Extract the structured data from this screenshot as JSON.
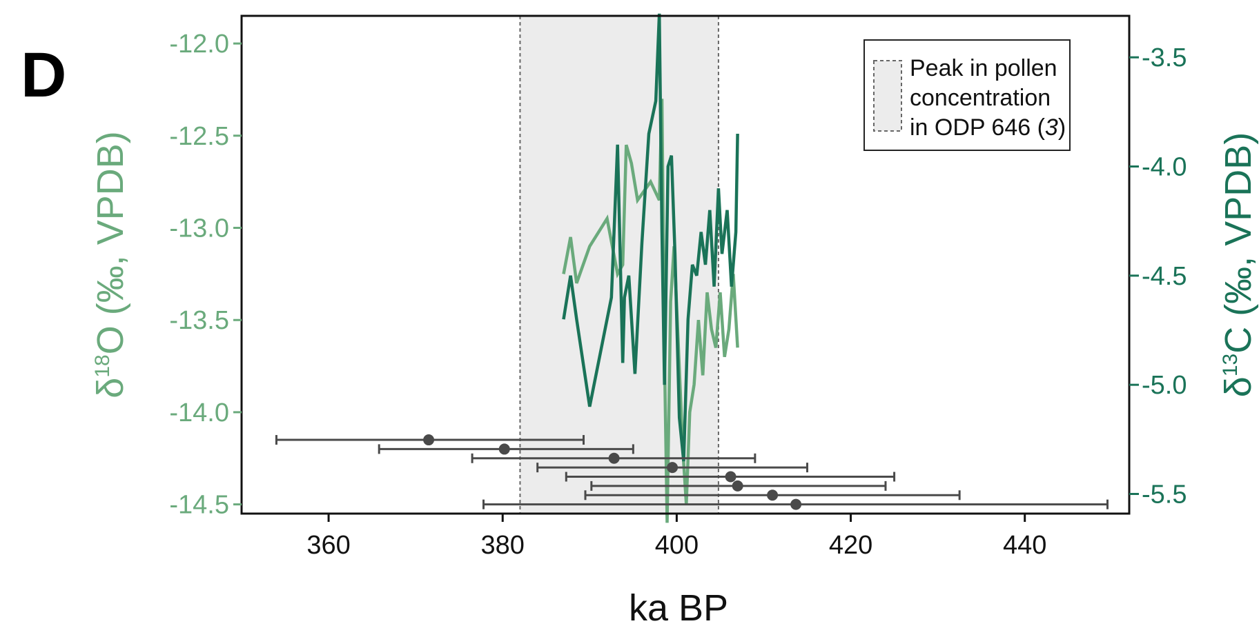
{
  "panel_label": "D",
  "colors": {
    "d18o": "#6aaa7c",
    "d13c": "#1a7358",
    "markers": "#4a4a4a",
    "shade": "#ececec",
    "axis": "#111111"
  },
  "chart_data": {
    "type": "line",
    "title": "",
    "xlabel": "ka BP",
    "xlim": [
      350,
      452
    ],
    "x_ticks": [
      "360",
      "380",
      "400",
      "420",
      "440"
    ],
    "y_left": {
      "label_main": "δ",
      "label_sup": "18",
      "label_rest": "O (‰, VPDB)",
      "ylim": [
        -14.55,
        -11.85
      ],
      "ticks": [
        "-12.0",
        "-12.5",
        "-13.0",
        "-13.5",
        "-14.0",
        "-14.5"
      ]
    },
    "y_right": {
      "label_main": "δ",
      "label_sup": "13",
      "label_rest": "C (‰, VPDB)",
      "ylim": [
        -5.59,
        -3.31
      ],
      "ticks": [
        "-3.5",
        "-4.0",
        "-4.5",
        "-5.0",
        "-5.5"
      ]
    },
    "shaded_region": {
      "x": [
        382,
        404.8
      ],
      "legend_line1": "Peak in pollen",
      "legend_line2": "concentration",
      "legend_line3a": "in ODP 646 (",
      "legend_line3b": "3",
      "legend_line3c": ")"
    },
    "series": [
      {
        "key": "d18o",
        "axis": "left",
        "x": [
          387.0,
          387.8,
          388.5,
          390.0,
          392.0,
          393.2,
          393.8,
          394.2,
          394.8,
          395.5,
          397.0,
          398.0,
          398.3,
          398.6,
          398.9,
          399.3,
          399.7,
          400.2,
          400.7,
          401.1,
          401.5,
          402.0,
          402.5,
          403.0,
          403.5,
          404.0,
          404.5,
          405.0,
          405.5,
          406.0,
          406.5,
          407.0
        ],
        "y": [
          -13.25,
          -13.05,
          -13.3,
          -13.1,
          -12.95,
          -13.25,
          -13.2,
          -12.55,
          -12.65,
          -12.85,
          -12.75,
          -12.85,
          -12.3,
          -13.7,
          -14.6,
          -13.4,
          -13.1,
          -13.65,
          -14.2,
          -14.5,
          -14.0,
          -13.85,
          -13.5,
          -13.8,
          -13.35,
          -13.55,
          -13.65,
          -13.35,
          -13.7,
          -13.55,
          -13.25,
          -13.65
        ]
      },
      {
        "key": "d13c",
        "axis": "right",
        "x": [
          387.0,
          387.8,
          388.5,
          390.0,
          391.5,
          392.5,
          393.2,
          393.8,
          394.0,
          394.5,
          395.2,
          396.0,
          396.8,
          397.6,
          398.0,
          398.3,
          398.6,
          399.0,
          399.4,
          399.8,
          400.3,
          400.8,
          401.3,
          401.8,
          402.3,
          402.8,
          403.3,
          403.8,
          404.3,
          404.8,
          405.2,
          405.8,
          406.3,
          406.8,
          407.0
        ],
        "y": [
          -4.7,
          -4.5,
          -4.7,
          -5.1,
          -4.8,
          -4.6,
          -3.9,
          -4.9,
          -4.6,
          -4.5,
          -4.95,
          -4.35,
          -3.85,
          -3.7,
          -3.3,
          -4.3,
          -5.0,
          -4.0,
          -3.95,
          -4.4,
          -5.15,
          -5.35,
          -4.7,
          -4.45,
          -4.5,
          -4.3,
          -4.45,
          -4.2,
          -4.55,
          -4.1,
          -4.4,
          -4.2,
          -4.55,
          -4.3,
          -3.85
        ]
      }
    ],
    "dated_points": {
      "x": [
        371.5,
        380.2,
        392.8,
        399.5,
        406.2,
        407.0,
        411.0,
        413.7
      ],
      "x_min": [
        354.0,
        365.8,
        376.5,
        384.0,
        387.3,
        390.2,
        389.5,
        377.8
      ],
      "x_max": [
        389.3,
        395.0,
        409.0,
        415.0,
        425.0,
        424.0,
        432.5,
        449.5
      ],
      "y": [
        -14.15,
        -14.2,
        -14.25,
        -14.3,
        -14.35,
        -14.4,
        -14.45,
        -14.5
      ]
    }
  }
}
